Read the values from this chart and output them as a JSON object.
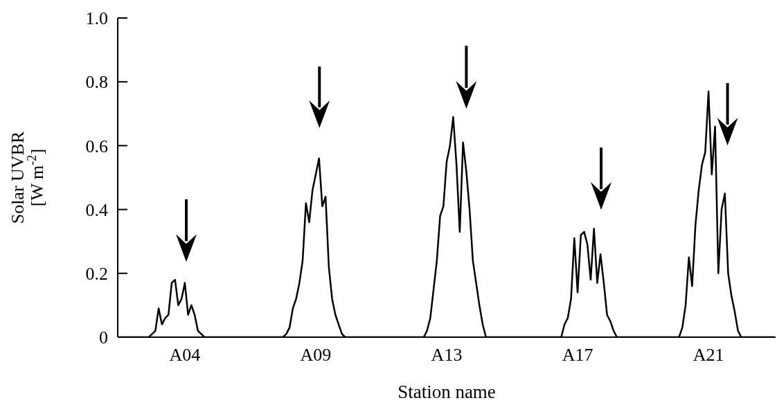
{
  "chart_data": {
    "type": "line",
    "xlabel": "Station name",
    "ylabel": "Solar UVBR\n[W m$^{-2}$]",
    "categories": [
      null,
      null,
      null,
      null,
      null,
      null,
      null,
      null,
      null,
      null,
      null,
      null,
      null,
      null,
      null,
      null,
      null,
      null,
      null,
      null,
      "A04",
      null,
      null,
      null,
      null,
      null,
      null,
      null,
      null,
      null,
      null,
      null,
      null,
      null,
      null,
      null,
      null,
      null,
      null,
      null,
      null,
      null,
      null,
      null,
      null,
      null,
      null,
      null,
      null,
      null,
      null,
      null,
      null,
      null,
      null,
      null,
      null,
      null,
      null,
      null,
      "A09",
      null,
      null,
      null,
      null,
      null,
      null,
      null,
      null,
      null,
      null,
      null,
      null,
      null,
      null,
      null,
      null,
      null,
      null,
      null,
      null,
      null,
      null,
      null,
      null,
      null,
      null,
      null,
      null,
      null,
      null,
      null,
      null,
      null,
      null,
      null,
      null,
      null,
      null,
      null,
      "A13",
      null,
      null,
      null,
      null,
      null,
      null,
      null,
      null,
      null,
      null,
      null,
      null,
      null,
      null,
      null,
      null,
      null,
      null,
      null,
      null,
      null,
      null,
      null,
      null,
      null,
      null,
      null,
      null,
      null,
      null,
      null,
      null,
      null,
      null,
      null,
      null,
      null,
      null,
      null,
      "A17",
      null,
      null,
      null,
      null,
      null,
      null,
      null,
      null,
      null,
      null,
      null,
      null,
      null,
      null,
      null,
      null,
      null,
      null,
      null,
      null,
      null,
      null,
      null,
      null,
      null,
      null,
      null,
      null,
      null,
      null,
      null,
      null,
      null,
      null,
      null,
      null,
      null,
      null,
      null,
      "A21",
      null,
      null,
      null,
      null,
      null,
      null,
      null,
      null,
      null,
      null,
      null,
      null,
      null,
      null,
      null,
      null,
      null,
      null,
      null,
      null
    ],
    "ylim": [
      0,
      1
    ],
    "yticks": [
      0,
      0.2,
      0.4,
      0.6,
      0.8,
      {
        "value": 1,
        "label": "1.0"
      }
    ],
    "grid": false,
    "marker": "none",
    "line_style": "solid",
    "series": [
      {
        "color": "#000000",
        "values": [
          0,
          0,
          0,
          0,
          0,
          0,
          0,
          0,
          0,
          0,
          0.01,
          0.02,
          0.09,
          0.04,
          0.06,
          0.07,
          0.17,
          0.18,
          0.1,
          0.12,
          0.17,
          0.07,
          0.1,
          0.07,
          0.02,
          0.01,
          0,
          0,
          0,
          0,
          0,
          0,
          0,
          0,
          0,
          0,
          0,
          0,
          0,
          0,
          0,
          0,
          0,
          0,
          0,
          0,
          0,
          0,
          0,
          0,
          0,
          0.01,
          0.03,
          0.09,
          0.12,
          0.17,
          0.24,
          0.42,
          0.36,
          0.46,
          0.51,
          0.56,
          0.41,
          0.44,
          0.22,
          0.12,
          0.07,
          0.04,
          0.01,
          0,
          0,
          0,
          0,
          0,
          0,
          0,
          0,
          0,
          0,
          0,
          0,
          0,
          0,
          0,
          0,
          0,
          0,
          0,
          0,
          0,
          0,
          0,
          0,
          0,
          0.02,
          0.06,
          0.15,
          0.24,
          0.38,
          0.41,
          0.55,
          0.6,
          0.69,
          0.54,
          0.33,
          0.61,
          0.52,
          0.4,
          0.24,
          0.17,
          0.1,
          0.04,
          0,
          0,
          0,
          0,
          0,
          0,
          0,
          0,
          0,
          0,
          0,
          0,
          0,
          0,
          0,
          0,
          0,
          0,
          0,
          0,
          0,
          0,
          0,
          0,
          0.04,
          0.06,
          0.12,
          0.31,
          0.14,
          0.32,
          0.33,
          0.29,
          0.18,
          0.34,
          0.17,
          0.26,
          0.17,
          0.07,
          0.05,
          0.02,
          0,
          0,
          0,
          0,
          0,
          0,
          0,
          0,
          0,
          0,
          0,
          0,
          0,
          0,
          0,
          0,
          0,
          0,
          0,
          0,
          0.03,
          0.1,
          0.25,
          0.16,
          0.35,
          0.46,
          0.54,
          0.58,
          0.77,
          0.51,
          0.66,
          0.2,
          0.4,
          0.45,
          0.2,
          0.13,
          0.08,
          0.02,
          0,
          0,
          0,
          0,
          0,
          0,
          0,
          0,
          0,
          0,
          0
        ]
      }
    ]
  }
}
